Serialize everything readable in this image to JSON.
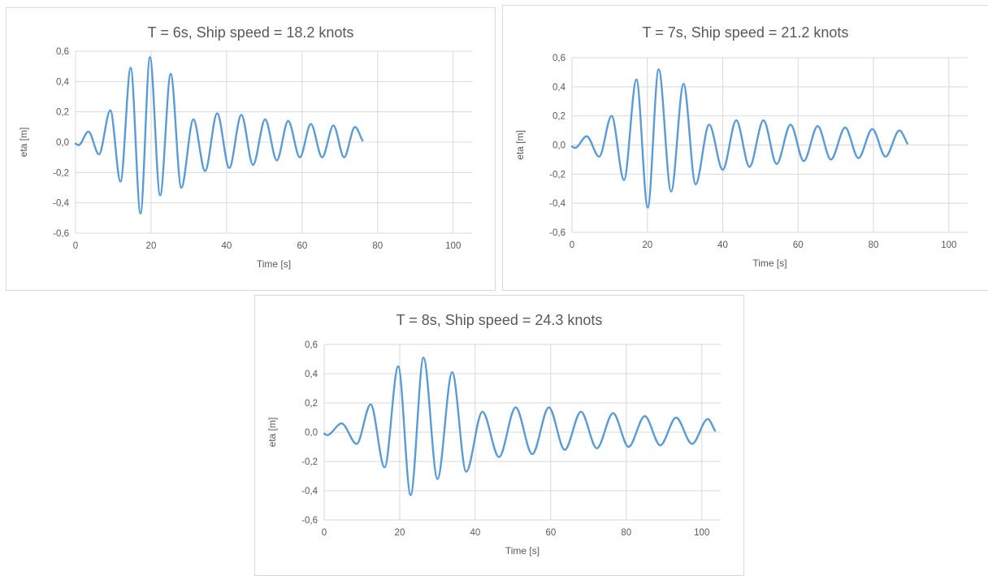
{
  "colors": {
    "series": "#5b9bd5",
    "grid": "#d9d9d9",
    "text": "#595959"
  },
  "chart_data": [
    {
      "type": "line",
      "title": "T = 6s, Ship speed = 18.2 knots",
      "xlabel": "Time [s]",
      "ylabel": "eta [m]",
      "xlim": [
        0,
        105
      ],
      "ylim": [
        -0.6,
        0.6
      ],
      "x_ticks": [
        "0",
        "20",
        "40",
        "60",
        "80",
        "100"
      ],
      "y_ticks": [
        "-0,6",
        "-0,4",
        "-0,2",
        "0,0",
        "0,2",
        "0,4",
        "0,6"
      ],
      "grid": true,
      "legend": "none",
      "series": [
        {
          "x": [
            0,
            0.8,
            3.4,
            6.2,
            9.2,
            11.9,
            14.6,
            17.2,
            19.7,
            22.4,
            25.2,
            28.0,
            31.2,
            34.3,
            37.5,
            40.7,
            43.9,
            47.0,
            50.2,
            53.3,
            56.3,
            59.4,
            62.3,
            65.3,
            68.3,
            71.1,
            74.0,
            76.0
          ],
          "y": [
            -0.01,
            -0.02,
            0.07,
            -0.08,
            0.21,
            -0.26,
            0.49,
            -0.47,
            0.56,
            -0.35,
            0.45,
            -0.3,
            0.15,
            -0.19,
            0.19,
            -0.17,
            0.18,
            -0.15,
            0.15,
            -0.12,
            0.14,
            -0.1,
            0.12,
            -0.1,
            0.11,
            -0.1,
            0.1,
            0.01
          ]
        }
      ]
    },
    {
      "type": "line",
      "title": "T = 7s, Ship speed = 21.2 knots",
      "xlabel": "Time [s]",
      "ylabel": "eta [m]",
      "xlim": [
        0,
        105
      ],
      "ylim": [
        -0.6,
        0.6
      ],
      "x_ticks": [
        "0",
        "20",
        "40",
        "60",
        "80",
        "100"
      ],
      "y_ticks": [
        "-0,6",
        "-0,4",
        "-0,2",
        "0,0",
        "0,2",
        "0,4",
        "0,6"
      ],
      "grid": true,
      "legend": "none",
      "series": [
        {
          "x": [
            0,
            0.8,
            3.9,
            7.2,
            10.5,
            13.8,
            17.1,
            20.1,
            23.0,
            26.3,
            29.6,
            32.8,
            36.4,
            40.0,
            43.6,
            47.1,
            50.8,
            54.3,
            58.0,
            61.5,
            65.2,
            68.7,
            72.5,
            76.0,
            79.7,
            83.2,
            86.9,
            89.0
          ],
          "y": [
            -0.01,
            -0.02,
            0.06,
            -0.08,
            0.2,
            -0.24,
            0.45,
            -0.43,
            0.52,
            -0.32,
            0.42,
            -0.27,
            0.14,
            -0.17,
            0.17,
            -0.15,
            0.17,
            -0.13,
            0.14,
            -0.11,
            0.13,
            -0.1,
            0.12,
            -0.09,
            0.11,
            -0.08,
            0.1,
            0.01
          ]
        }
      ]
    },
    {
      "type": "line",
      "title": "T = 8s, Ship speed = 24.3 knots",
      "xlabel": "Time [s]",
      "ylabel": "eta [m]",
      "xlim": [
        0,
        105
      ],
      "ylim": [
        -0.6,
        0.6
      ],
      "x_ticks": [
        "0",
        "20",
        "40",
        "60",
        "80",
        "100"
      ],
      "y_ticks": [
        "-0,6",
        "-0,4",
        "-0,2",
        "0,0",
        "0,2",
        "0,4",
        "0,6"
      ],
      "grid": true,
      "legend": "none",
      "series": [
        {
          "x": [
            0,
            0.8,
            4.6,
            8.6,
            12.3,
            16.0,
            19.6,
            22.9,
            26.3,
            30.0,
            33.9,
            37.6,
            41.9,
            46.3,
            50.7,
            55.1,
            59.5,
            63.7,
            68.0,
            72.2,
            76.5,
            80.6,
            84.9,
            89.0,
            93.2,
            97.4,
            101.6,
            103.5
          ],
          "y": [
            -0.01,
            -0.02,
            0.06,
            -0.08,
            0.19,
            -0.24,
            0.45,
            -0.43,
            0.51,
            -0.32,
            0.41,
            -0.27,
            0.14,
            -0.17,
            0.17,
            -0.15,
            0.17,
            -0.12,
            0.14,
            -0.11,
            0.13,
            -0.1,
            0.11,
            -0.09,
            0.1,
            -0.08,
            0.09,
            0.01
          ]
        }
      ]
    }
  ]
}
